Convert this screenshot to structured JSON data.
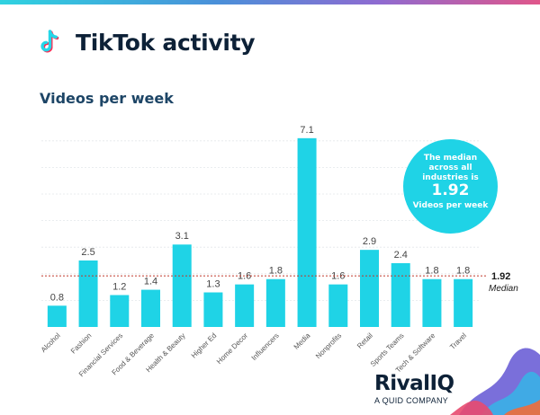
{
  "header": {
    "title": "TikTok activity",
    "subtitle": "Videos per week"
  },
  "chart_data": {
    "type": "bar",
    "title": "Videos per week",
    "categories": [
      "Alcohol",
      "Fashion",
      "Financial Services",
      "Food & Beverage",
      "Health & Beauty",
      "Higher Ed",
      "Home Decor",
      "Influencers",
      "Media",
      "Nonprofits",
      "Retail",
      "Sports Teams",
      "Tech & Software",
      "Travel"
    ],
    "values": [
      0.8,
      2.5,
      1.2,
      1.4,
      3.1,
      1.3,
      1.6,
      1.8,
      7.1,
      1.6,
      2.9,
      2.4,
      1.8,
      1.8
    ],
    "value_labels": [
      "0.8",
      "2.5",
      "1.2",
      "1.4",
      "3.1",
      "1.3",
      "1.6",
      "1.8",
      "7.1",
      "1.6",
      "2.9",
      "2.4",
      "1.8",
      "1.8"
    ],
    "ylim": [
      0,
      7.5
    ],
    "grid": true,
    "median": 1.92,
    "bar_color": "#1fd3e6",
    "median_line_color": "#c0392b"
  },
  "median_callout": {
    "line1": "The median",
    "line2": "across all",
    "line3": "industries is",
    "value": "1.92",
    "line4": "Videos per week",
    "marker_value": "1.92",
    "marker_label": "Median"
  },
  "brand": {
    "logo_text": "RivalIQ",
    "tagline": "A QUID COMPANY"
  }
}
